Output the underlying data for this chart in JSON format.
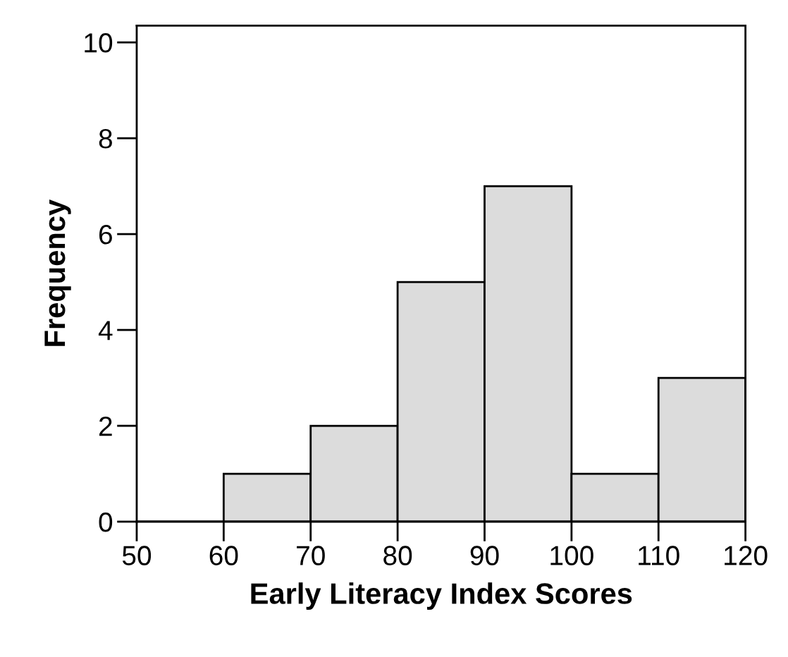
{
  "chart_data": {
    "type": "histogram",
    "xlabel": "Early Literacy Index Scores",
    "ylabel": "Frequency",
    "bins": [
      50,
      60,
      70,
      80,
      90,
      100,
      110,
      120
    ],
    "values": [
      0,
      1,
      2,
      5,
      7,
      1,
      3
    ],
    "color": "#dcdcdc",
    "xlim": [
      50,
      120
    ],
    "xticks": [
      50,
      60,
      70,
      80,
      90,
      100,
      110,
      120
    ],
    "ylim": [
      0,
      10.35
    ],
    "yticks": [
      0,
      2,
      4,
      6,
      8,
      10
    ],
    "grid": false,
    "legend": false
  }
}
